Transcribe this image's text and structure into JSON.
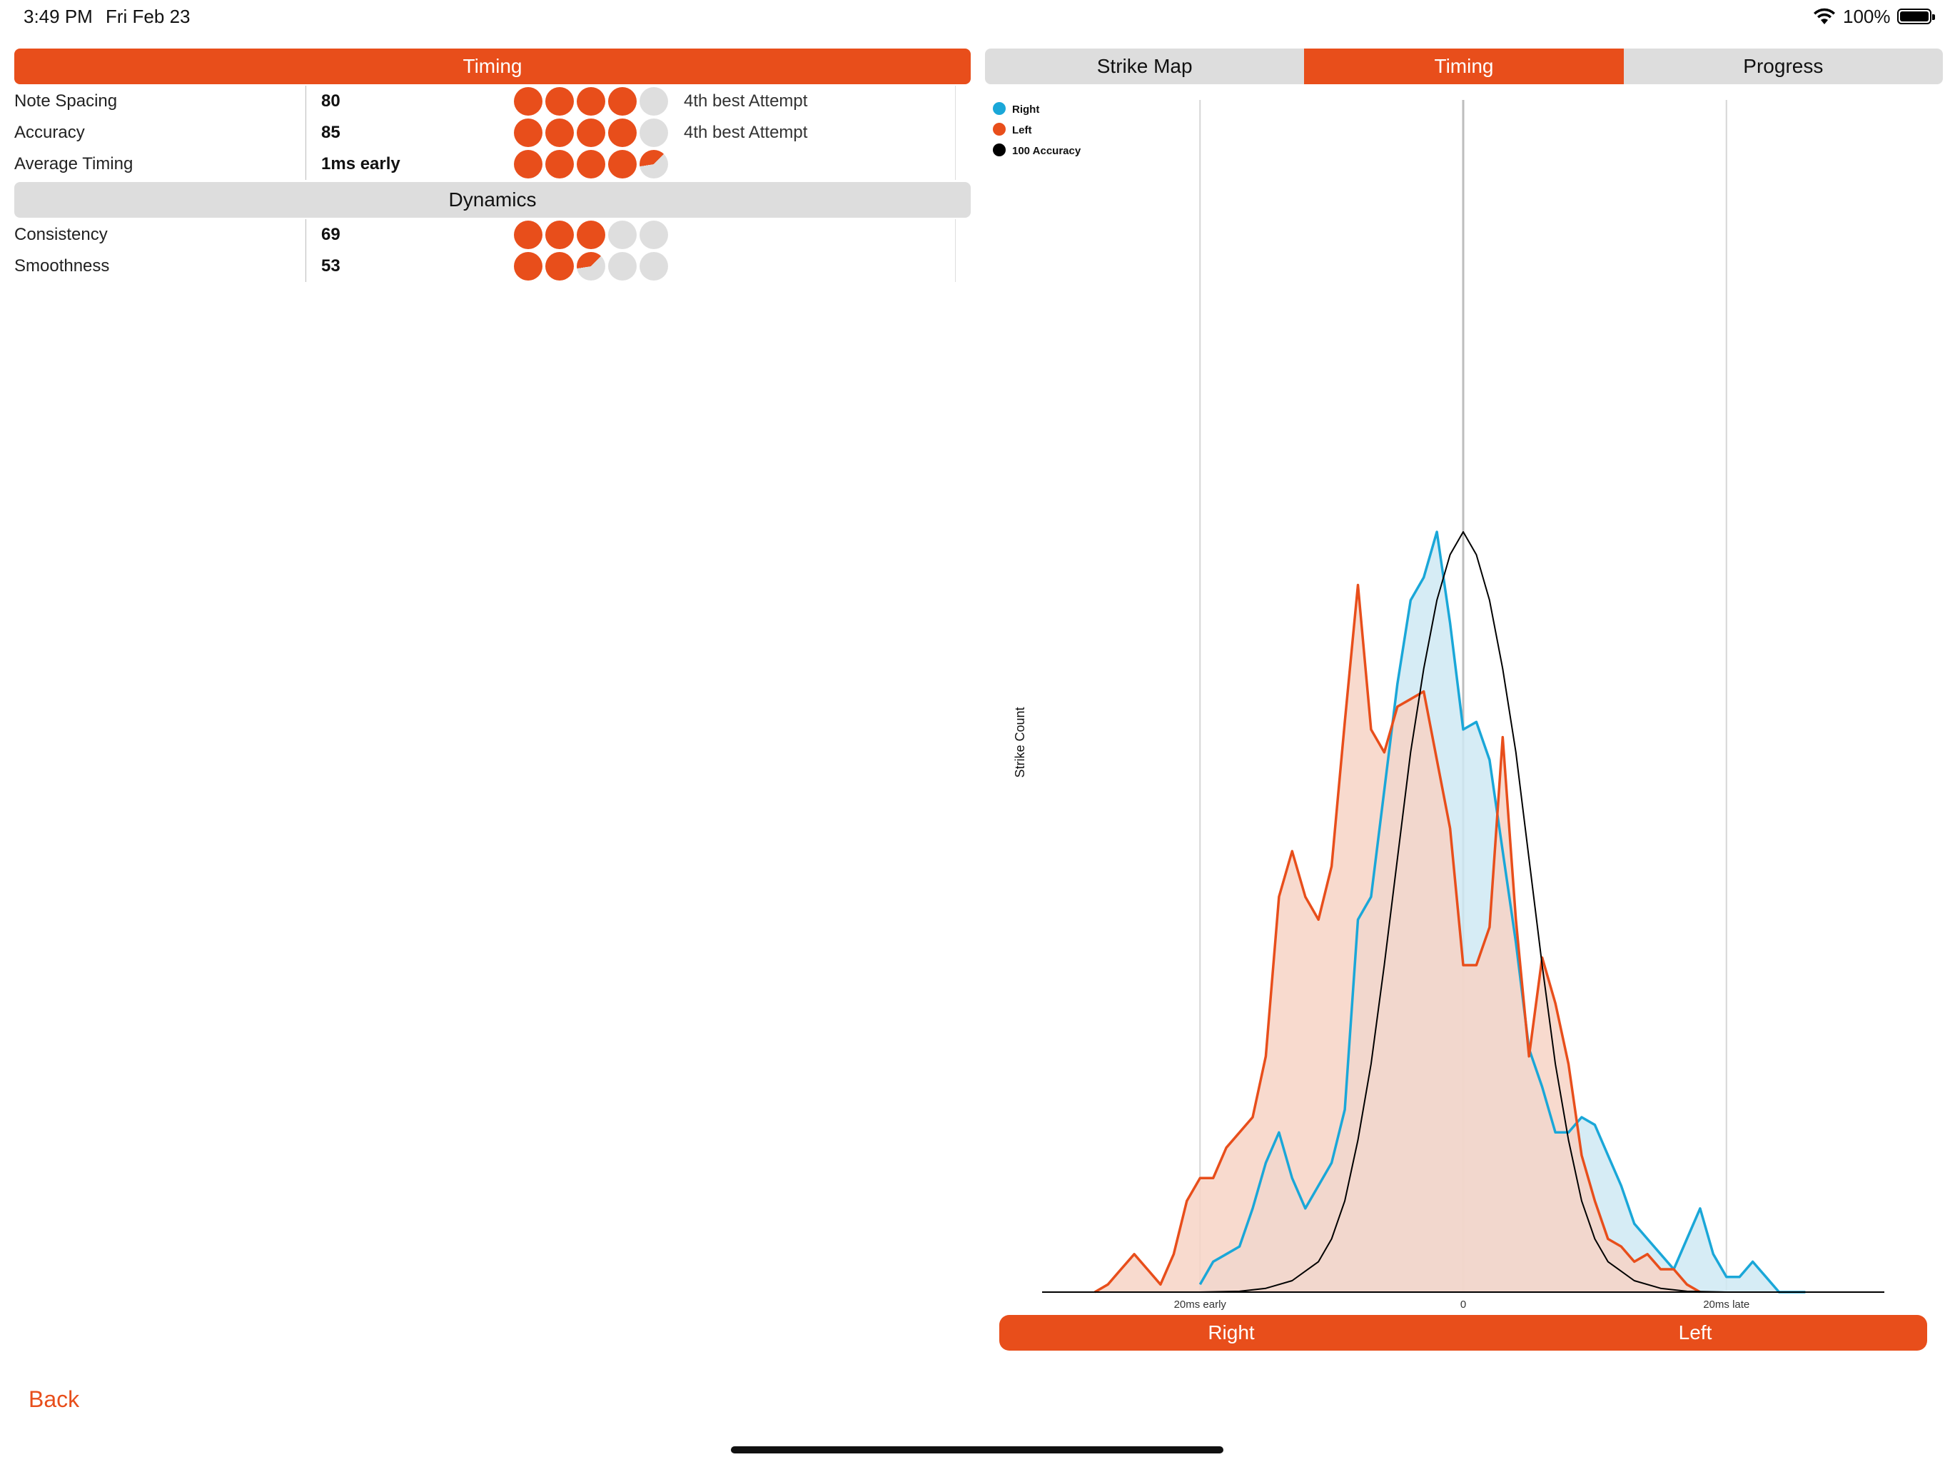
{
  "status": {
    "time": "3:49 PM",
    "date": "Fri Feb 23",
    "battery": "100%"
  },
  "timing_section": {
    "title": "Timing"
  },
  "timing_rows": [
    {
      "label": "Note Spacing",
      "value": "80",
      "filled": 4,
      "note": "4th best Attempt"
    },
    {
      "label": "Accuracy",
      "value": "85",
      "filled": 4,
      "note": "4th best Attempt"
    },
    {
      "label": "Average Timing",
      "value": "1ms early",
      "filled": 4.4,
      "note": ""
    }
  ],
  "dynamics_section": {
    "title": "Dynamics"
  },
  "dynamics_rows": [
    {
      "label": "Consistency",
      "value": "69",
      "filled": 3
    },
    {
      "label": "Smoothness",
      "value": "53",
      "filled": 2.4
    }
  ],
  "tabs": [
    {
      "label": "Strike Map",
      "active": false
    },
    {
      "label": "Timing",
      "active": true
    },
    {
      "label": "Progress",
      "active": false
    }
  ],
  "colors": {
    "accent": "#e84e1b",
    "right": "#1aa7d8",
    "left": "#e84e1b",
    "accuracy": "#000000"
  },
  "chart_data": {
    "type": "area",
    "ylabel": "Strike Count",
    "x_ticks": [
      {
        "x": -20,
        "label": "20ms early"
      },
      {
        "x": 0,
        "label": "0"
      },
      {
        "x": 20,
        "label": "20ms late"
      }
    ],
    "xlim": [
      -32,
      32
    ],
    "ylim": [
      0,
      1.0
    ],
    "legend_position": "top-left",
    "series": [
      {
        "name": "Right",
        "color": "#1aa7d8",
        "fill": "#cfe9f3",
        "x": [
          -20,
          -19,
          -18,
          -17,
          -16,
          -15,
          -14,
          -13,
          -12,
          -11,
          -10,
          -9,
          -8,
          -7,
          -6,
          -5,
          -4,
          -3,
          -2,
          -1,
          0,
          1,
          2,
          3,
          4,
          5,
          6,
          7,
          8,
          9,
          10,
          11,
          12,
          13,
          14,
          15,
          16,
          17,
          18,
          19,
          20,
          21,
          22,
          23,
          24,
          25,
          26
        ],
        "y": [
          0.01,
          0.04,
          0.05,
          0.06,
          0.11,
          0.17,
          0.21,
          0.15,
          0.11,
          0.14,
          0.17,
          0.24,
          0.49,
          0.52,
          0.66,
          0.8,
          0.91,
          0.94,
          1.0,
          0.88,
          0.74,
          0.75,
          0.7,
          0.58,
          0.46,
          0.32,
          0.27,
          0.21,
          0.21,
          0.23,
          0.22,
          0.18,
          0.14,
          0.09,
          0.07,
          0.05,
          0.03,
          0.07,
          0.11,
          0.05,
          0.02,
          0.02,
          0.04,
          0.02,
          0.0,
          0.0,
          0.0
        ]
      },
      {
        "name": "Left",
        "color": "#e84e1b",
        "fill": "#f7d3c6",
        "x": [
          -28,
          -27,
          -26,
          -25,
          -24,
          -23,
          -22,
          -21,
          -20,
          -19,
          -18,
          -17,
          -16,
          -15,
          -14,
          -13,
          -12,
          -11,
          -10,
          -9,
          -8,
          -7,
          -6,
          -5,
          -4,
          -3,
          -2,
          -1,
          0,
          1,
          2,
          3,
          4,
          5,
          6,
          7,
          8,
          9,
          10,
          11,
          12,
          13,
          14,
          15,
          16,
          17,
          18
        ],
        "y": [
          0.0,
          0.01,
          0.03,
          0.05,
          0.03,
          0.01,
          0.05,
          0.12,
          0.15,
          0.15,
          0.19,
          0.21,
          0.23,
          0.31,
          0.52,
          0.58,
          0.52,
          0.49,
          0.56,
          0.75,
          0.93,
          0.74,
          0.71,
          0.77,
          0.78,
          0.79,
          0.7,
          0.61,
          0.43,
          0.43,
          0.48,
          0.73,
          0.49,
          0.31,
          0.44,
          0.38,
          0.3,
          0.18,
          0.12,
          0.07,
          0.06,
          0.04,
          0.05,
          0.03,
          0.03,
          0.01,
          0.0
        ]
      },
      {
        "name": "100 Accuracy",
        "color": "#000000",
        "fill": "none",
        "x": [
          -32,
          -28,
          -24,
          -20,
          -17,
          -15,
          -13,
          -11,
          -10,
          -9,
          -8,
          -7,
          -6,
          -5,
          -4,
          -3,
          -2,
          -1,
          0,
          1,
          2,
          3,
          4,
          5,
          6,
          7,
          8,
          9,
          10,
          11,
          13,
          15,
          17,
          20,
          24,
          28,
          32
        ],
        "y": [
          0,
          0,
          0,
          0,
          0.001,
          0.005,
          0.015,
          0.04,
          0.07,
          0.12,
          0.2,
          0.3,
          0.43,
          0.57,
          0.71,
          0.82,
          0.91,
          0.97,
          1.0,
          0.97,
          0.91,
          0.82,
          0.71,
          0.57,
          0.43,
          0.3,
          0.2,
          0.12,
          0.07,
          0.04,
          0.015,
          0.005,
          0.001,
          0,
          0,
          0,
          0
        ]
      }
    ]
  },
  "rl_bar": {
    "right_label": "Right",
    "left_label": "Left"
  },
  "back_label": "Back"
}
